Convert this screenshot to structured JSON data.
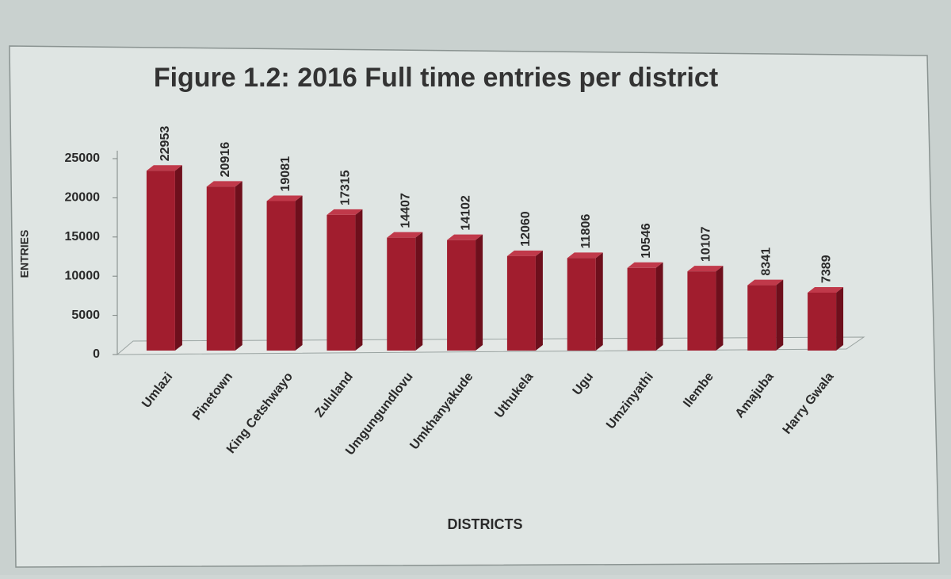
{
  "chart_data": {
    "type": "bar3d",
    "title": "Figure 1.2: 2016 Full time entries per district",
    "y_label": "ENTRIES",
    "x_label": "DISTRICTS",
    "categories": [
      "Umlazi",
      "Pinetown",
      "King Cetshwayo",
      "Zululand",
      "Umgungundlovu",
      "Umkhanyakude",
      "Uthukela",
      "Ugu",
      "Umzinyathi",
      "Ilembe",
      "Amajuba",
      "Harry Gwala"
    ],
    "values": [
      22953,
      20916,
      19081,
      17315,
      14407,
      14102,
      12060,
      11806,
      10546,
      10107,
      8341,
      7389
    ],
    "color": "#a11d2e",
    "ylim": [
      0,
      25000
    ],
    "yticks": [
      0,
      5000,
      10000,
      15000,
      20000,
      25000
    ],
    "grid": false
  }
}
